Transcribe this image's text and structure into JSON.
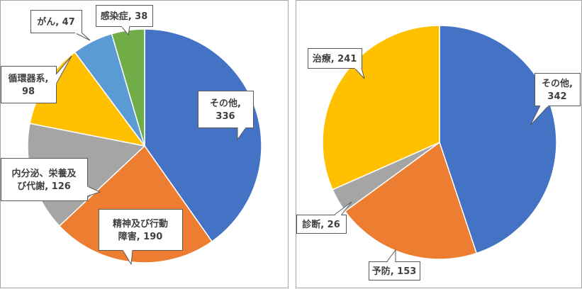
{
  "chart_data": [
    {
      "type": "pie",
      "categories": [
        "その他",
        "精神及び行動障害",
        "内分泌、栄養及び代謝",
        "循環器系",
        "がん",
        "感染症"
      ],
      "values": [
        336,
        190,
        126,
        98,
        47,
        38
      ],
      "colors": [
        "#4472c4",
        "#ed7d31",
        "#a5a5a5",
        "#ffc000",
        "#5b9bd5",
        "#70ad47"
      ],
      "labels": [
        [
          "その他,",
          "336"
        ],
        [
          "精神及び行動",
          "障害, 190"
        ],
        [
          "内分泌、栄養及",
          "び代謝, 126"
        ],
        [
          "循環器系,",
          "98"
        ],
        [
          "がん, 47"
        ],
        [
          "感染症, 38"
        ]
      ]
    },
    {
      "type": "pie",
      "categories": [
        "その他",
        "予防",
        "診断",
        "治療"
      ],
      "values": [
        342,
        153,
        26,
        241
      ],
      "colors": [
        "#4472c4",
        "#ed7d31",
        "#a5a5a5",
        "#ffc000"
      ],
      "labels": [
        [
          "その他,",
          "342"
        ],
        [
          "予防, 153"
        ],
        [
          "診断, 26"
        ],
        [
          "治療, 241"
        ]
      ]
    }
  ]
}
